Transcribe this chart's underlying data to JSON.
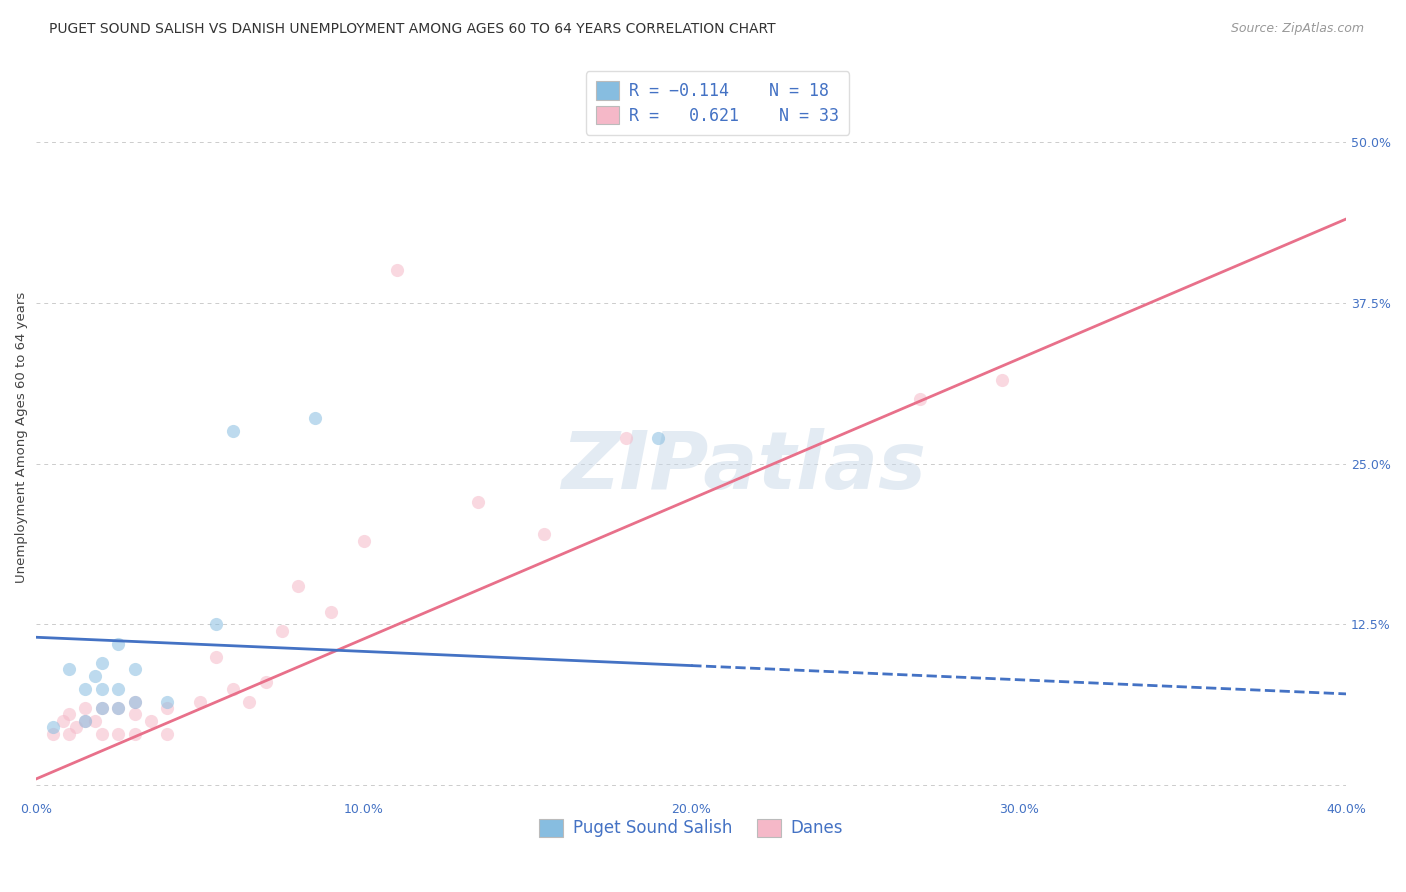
{
  "title": "PUGET SOUND SALISH VS DANISH UNEMPLOYMENT AMONG AGES 60 TO 64 YEARS CORRELATION CHART",
  "source": "Source: ZipAtlas.com",
  "ylabel": "Unemployment Among Ages 60 to 64 years",
  "xlim": [
    0.0,
    0.4
  ],
  "ylim": [
    -0.01,
    0.55
  ],
  "xticks": [
    0.0,
    0.1,
    0.2,
    0.3,
    0.4
  ],
  "xticklabels": [
    "0.0%",
    "10.0%",
    "20.0%",
    "30.0%",
    "40.0%"
  ],
  "yticks_right": [
    0.0,
    0.125,
    0.25,
    0.375,
    0.5
  ],
  "yticklabels_right": [
    "",
    "12.5%",
    "25.0%",
    "37.5%",
    "50.0%"
  ],
  "background_color": "#ffffff",
  "grid_color": "#cccccc",
  "watermark_text": "ZIPatlas",
  "color_blue": "#87bde0",
  "color_pink": "#f5b8c8",
  "color_blue_line": "#4472c4",
  "color_pink_line": "#e8708a",
  "color_axis": "#4472c4",
  "blue_scatter_x": [
    0.005,
    0.01,
    0.015,
    0.015,
    0.018,
    0.02,
    0.02,
    0.02,
    0.025,
    0.025,
    0.025,
    0.03,
    0.03,
    0.04,
    0.055,
    0.06,
    0.085,
    0.19
  ],
  "blue_scatter_y": [
    0.045,
    0.09,
    0.05,
    0.075,
    0.085,
    0.06,
    0.075,
    0.095,
    0.06,
    0.075,
    0.11,
    0.065,
    0.09,
    0.065,
    0.125,
    0.275,
    0.285,
    0.27
  ],
  "pink_scatter_x": [
    0.005,
    0.008,
    0.01,
    0.01,
    0.012,
    0.015,
    0.015,
    0.018,
    0.02,
    0.02,
    0.025,
    0.025,
    0.03,
    0.03,
    0.03,
    0.035,
    0.04,
    0.04,
    0.05,
    0.055,
    0.06,
    0.065,
    0.07,
    0.075,
    0.08,
    0.09,
    0.1,
    0.11,
    0.135,
    0.155,
    0.18,
    0.27,
    0.295
  ],
  "pink_scatter_y": [
    0.04,
    0.05,
    0.04,
    0.055,
    0.045,
    0.05,
    0.06,
    0.05,
    0.04,
    0.06,
    0.04,
    0.06,
    0.04,
    0.055,
    0.065,
    0.05,
    0.04,
    0.06,
    0.065,
    0.1,
    0.075,
    0.065,
    0.08,
    0.12,
    0.155,
    0.135,
    0.19,
    0.4,
    0.22,
    0.195,
    0.27,
    0.3,
    0.315
  ],
  "blue_line_x0": 0.0,
  "blue_line_x1": 0.2,
  "blue_line_x2": 0.4,
  "blue_line_y0": 0.115,
  "blue_line_y1": 0.093,
  "blue_line_y2": 0.071,
  "pink_line_x0": 0.0,
  "pink_line_x1": 0.4,
  "pink_line_y0": 0.005,
  "pink_line_y1": 0.44,
  "title_fontsize": 10,
  "source_fontsize": 9,
  "axis_label_fontsize": 9.5,
  "tick_fontsize": 9,
  "legend_fontsize": 12,
  "marker_size": 90,
  "marker_alpha": 0.55
}
